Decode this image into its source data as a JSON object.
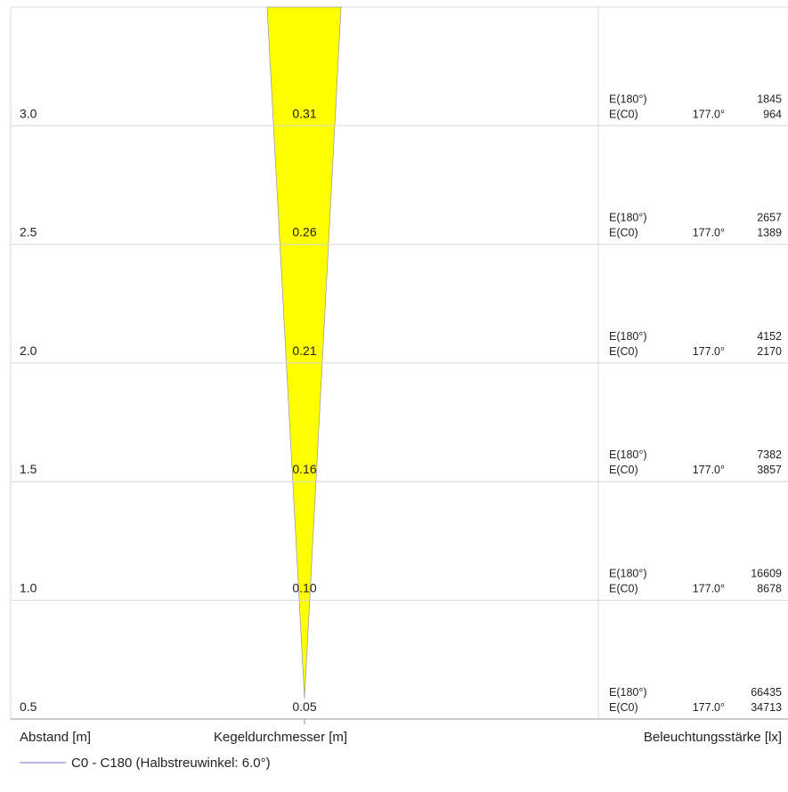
{
  "labels": {
    "distance": "Abstand [m]",
    "diameter": "Kegeldurchmesser [m]",
    "illuminance": "Beleuchtungsstärke [lx]",
    "legend": "C0 - C180 (Halbstreuwinkel: 6.0°)"
  },
  "colors": {
    "cone": "#ffff00",
    "grid": "#d8d8d8",
    "legend_line": "#a0a0d0",
    "axis": "#999999"
  },
  "chart_data": {
    "type": "table",
    "rows": [
      {
        "distance": "3.0",
        "diameter": "0.31",
        "e180_label": "E(180°)",
        "e180": "1845",
        "ec0_label": "E(C0)",
        "ec0_angle": "177.0°",
        "ec0": "964"
      },
      {
        "distance": "2.5",
        "diameter": "0.26",
        "e180_label": "E(180°)",
        "e180": "2657",
        "ec0_label": "E(C0)",
        "ec0_angle": "177.0°",
        "ec0": "1389"
      },
      {
        "distance": "2.0",
        "diameter": "0.21",
        "e180_label": "E(180°)",
        "e180": "4152",
        "ec0_label": "E(C0)",
        "ec0_angle": "177.0°",
        "ec0": "2170"
      },
      {
        "distance": "1.5",
        "diameter": "0.16",
        "e180_label": "E(180°)",
        "e180": "7382",
        "ec0_label": "E(C0)",
        "ec0_angle": "177.0°",
        "ec0": "3857"
      },
      {
        "distance": "1.0",
        "diameter": "0.10",
        "e180_label": "E(180°)",
        "e180": "16609",
        "ec0_label": "E(C0)",
        "ec0_angle": "177.0°",
        "ec0": "8678"
      },
      {
        "distance": "0.5",
        "diameter": "0.05",
        "e180_label": "E(180°)",
        "e180": "66435",
        "ec0_label": "E(C0)",
        "ec0_angle": "177.0°",
        "ec0": "34713"
      }
    ]
  }
}
